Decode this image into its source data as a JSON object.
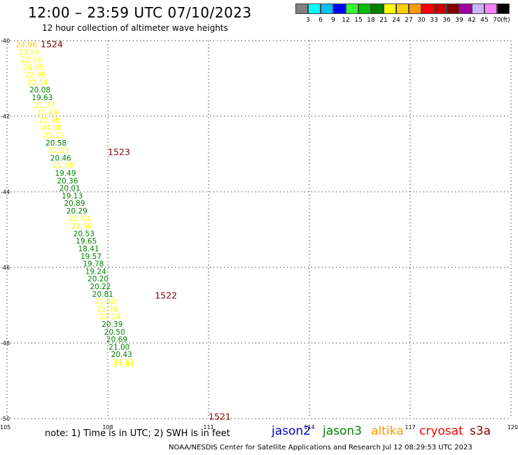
{
  "header": {
    "title": "12:00 – 23:59 UTC 07/10/2023",
    "subtitle": "12 hour collection of altimeter wave heights"
  },
  "colorbar": {
    "unit": "(ft)",
    "colors": [
      "#808080",
      "#00ffff",
      "#00bfff",
      "#0000ff",
      "#33ff33",
      "#00c000",
      "#008000",
      "#ffff00",
      "#ffcc00",
      "#ff9900",
      "#ff0000",
      "#cc0000",
      "#800000",
      "#a000a0",
      "#ccb3ff",
      "#ff80ff",
      "#000000"
    ],
    "labels": [
      "3",
      "6",
      "9",
      "12",
      "15",
      "18",
      "21",
      "24",
      "27",
      "30",
      "33",
      "36",
      "39",
      "42",
      "45",
      "70"
    ]
  },
  "chart_data": {
    "type": "scatter",
    "x_range": [
      105,
      120
    ],
    "y_range": [
      -50,
      -40
    ],
    "x_ticks": [
      "105",
      "108",
      "111",
      "114",
      "117",
      "120"
    ],
    "y_ticks": [
      "-40",
      "-42",
      "-44",
      "-46",
      "-48",
      "-50"
    ],
    "grid": true,
    "passes": [
      {
        "label": "1524",
        "lon": 106.0,
        "lat": -40.1
      },
      {
        "label": "1523",
        "lon": 108.0,
        "lat": -42.95
      },
      {
        "label": "1522",
        "lon": 109.4,
        "lat": -46.75
      },
      {
        "label": "1521",
        "lon": 111.0,
        "lat": -49.95
      }
    ],
    "points": [
      {
        "lon": 105.58,
        "lat": -40.1,
        "value": "24.96",
        "color": "#ffcc00"
      },
      {
        "lon": 105.65,
        "lat": -40.3,
        "value": "23.54",
        "color": "#ffff00"
      },
      {
        "lon": 105.71,
        "lat": -40.5,
        "value": "22.26",
        "color": "#ffff00"
      },
      {
        "lon": 105.78,
        "lat": -40.7,
        "value": "24.05",
        "color": "#ffff00"
      },
      {
        "lon": 105.85,
        "lat": -40.9,
        "value": "22.95",
        "color": "#ffff00"
      },
      {
        "lon": 105.91,
        "lat": -41.1,
        "value": "22.14",
        "color": "#ffff00"
      },
      {
        "lon": 105.98,
        "lat": -41.3,
        "value": "20.08",
        "color": "#008000"
      },
      {
        "lon": 106.05,
        "lat": -41.5,
        "value": "19.63",
        "color": "#008000"
      },
      {
        "lon": 106.12,
        "lat": -41.7,
        "value": "21.77",
        "color": "#ffff00"
      },
      {
        "lon": 106.19,
        "lat": -41.9,
        "value": "21.49",
        "color": "#ffff00"
      },
      {
        "lon": 106.26,
        "lat": -42.1,
        "value": "22.98",
        "color": "#ffff00"
      },
      {
        "lon": 106.33,
        "lat": -42.3,
        "value": "24.00",
        "color": "#ffff00"
      },
      {
        "lon": 106.39,
        "lat": -42.5,
        "value": "21.12",
        "color": "#ffff00"
      },
      {
        "lon": 106.46,
        "lat": -42.7,
        "value": "20.58",
        "color": "#008000"
      },
      {
        "lon": 106.53,
        "lat": -42.9,
        "value": "21.13",
        "color": "#ffff00"
      },
      {
        "lon": 106.6,
        "lat": -43.1,
        "value": "20.46",
        "color": "#008000"
      },
      {
        "lon": 106.67,
        "lat": -43.3,
        "value": "21.08",
        "color": "#ffff00"
      },
      {
        "lon": 106.74,
        "lat": -43.5,
        "value": "19.49",
        "color": "#008000"
      },
      {
        "lon": 106.8,
        "lat": -43.7,
        "value": "20.36",
        "color": "#008000"
      },
      {
        "lon": 106.87,
        "lat": -43.9,
        "value": "20.01",
        "color": "#008000"
      },
      {
        "lon": 106.94,
        "lat": -44.1,
        "value": "19.13",
        "color": "#008000"
      },
      {
        "lon": 107.01,
        "lat": -44.3,
        "value": "20.89",
        "color": "#008000"
      },
      {
        "lon": 107.08,
        "lat": -44.5,
        "value": "20.29",
        "color": "#008000"
      },
      {
        "lon": 107.15,
        "lat": -44.7,
        "value": "21.83",
        "color": "#ffff00"
      },
      {
        "lon": 107.22,
        "lat": -44.9,
        "value": "21.50",
        "color": "#ffff00"
      },
      {
        "lon": 107.29,
        "lat": -45.1,
        "value": "20.53",
        "color": "#008000"
      },
      {
        "lon": 107.36,
        "lat": -45.3,
        "value": "19.65",
        "color": "#008000"
      },
      {
        "lon": 107.43,
        "lat": -45.5,
        "value": "18.41",
        "color": "#008000"
      },
      {
        "lon": 107.5,
        "lat": -45.7,
        "value": "19.57",
        "color": "#008000"
      },
      {
        "lon": 107.57,
        "lat": -45.9,
        "value": "19.78",
        "color": "#008000"
      },
      {
        "lon": 107.64,
        "lat": -46.1,
        "value": "19.24",
        "color": "#008000"
      },
      {
        "lon": 107.71,
        "lat": -46.3,
        "value": "20.20",
        "color": "#008000"
      },
      {
        "lon": 107.78,
        "lat": -46.5,
        "value": "20.22",
        "color": "#008000"
      },
      {
        "lon": 107.85,
        "lat": -46.7,
        "value": "20.81",
        "color": "#008000"
      },
      {
        "lon": 107.92,
        "lat": -46.9,
        "value": "21.40",
        "color": "#ffff00"
      },
      {
        "lon": 107.99,
        "lat": -47.1,
        "value": "21.76",
        "color": "#ffff00"
      },
      {
        "lon": 108.06,
        "lat": -47.3,
        "value": "22.14",
        "color": "#ffff00"
      },
      {
        "lon": 108.13,
        "lat": -47.5,
        "value": "20.39",
        "color": "#008000"
      },
      {
        "lon": 108.2,
        "lat": -47.7,
        "value": "20.50",
        "color": "#008000"
      },
      {
        "lon": 108.27,
        "lat": -47.9,
        "value": "20.69",
        "color": "#008000"
      },
      {
        "lon": 108.34,
        "lat": -48.1,
        "value": "21.00",
        "color": "#008000"
      },
      {
        "lon": 108.41,
        "lat": -48.3,
        "value": "20.43",
        "color": "#008000"
      },
      {
        "lon": 108.48,
        "lat": -48.5,
        "value": "24.61",
        "color": "#ffff00"
      },
      {
        "lon": 108.49,
        "lat": -48.56,
        "value": "24.41",
        "color": "#ffff00"
      }
    ]
  },
  "note": "note: 1) Time is in UTC; 2) SWH is in feet",
  "legend": [
    {
      "name": "jason2",
      "color": "#0000cc"
    },
    {
      "name": "jason3",
      "color": "#008000"
    },
    {
      "name": "altika",
      "color": "#ff9900"
    },
    {
      "name": "cryosat",
      "color": "#ff0000"
    },
    {
      "name": "s3a",
      "color": "#800000"
    }
  ],
  "footer": "NOAA/NESDIS Center for Satellite Applications and Research    Jul 12 08:29:53 UTC 2023"
}
